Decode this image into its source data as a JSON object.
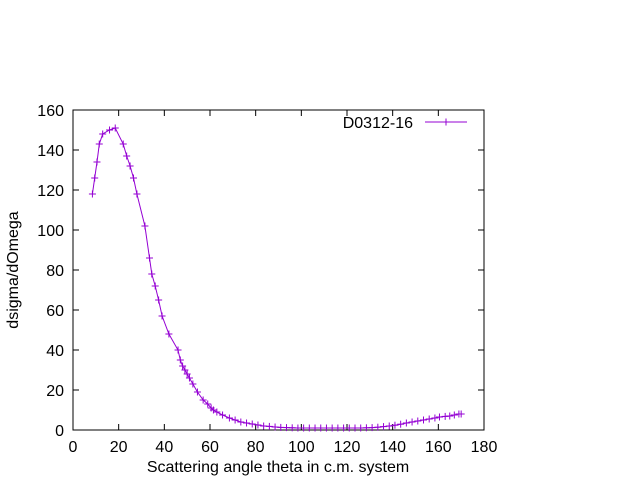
{
  "chart_data": {
    "type": "line",
    "title": "",
    "xlabel": "Scattering angle theta in c.m. system",
    "ylabel": "dsigma/dOmega",
    "xlim": [
      0,
      180
    ],
    "ylim": [
      0,
      160
    ],
    "xticks": [
      0,
      20,
      40,
      60,
      80,
      100,
      120,
      140,
      160,
      180
    ],
    "yticks": [
      0,
      20,
      40,
      60,
      80,
      100,
      120,
      140,
      160
    ],
    "grid": false,
    "legend_position": "top-right",
    "colors": {
      "series": "#9400d3",
      "axis": "#000000"
    },
    "marker": "plus",
    "series": [
      {
        "name": "D0312-16",
        "x": [
          8.5,
          9.5,
          10.5,
          11.5,
          13,
          16,
          18.5,
          22,
          23.5,
          25,
          26.5,
          28,
          31.5,
          33.5,
          34.5,
          36,
          37.5,
          39,
          42,
          46,
          47,
          48,
          49,
          50,
          51,
          52.5,
          54.5,
          57,
          59,
          60.5,
          61.5,
          63,
          65.5,
          68.5,
          71,
          73.5,
          76,
          78.5,
          81,
          83.5,
          86,
          88.5,
          91,
          93.5,
          96,
          98.5,
          101,
          103.5,
          106,
          108.5,
          111,
          113.5,
          116,
          118.5,
          121,
          123.5,
          126,
          128.5,
          131,
          133.5,
          136,
          138.5,
          141,
          143.5,
          146,
          148.5,
          151,
          153.5,
          156,
          158.5,
          160.5,
          163,
          165,
          167,
          169,
          170
        ],
        "y": [
          118,
          126,
          134,
          143,
          148,
          150,
          151,
          143,
          137,
          132,
          126,
          118,
          102,
          86,
          78,
          72,
          65,
          57,
          48,
          40,
          35,
          32,
          30,
          28,
          26,
          23,
          19,
          15,
          13,
          11,
          10,
          9,
          7.5,
          6,
          5,
          4,
          3.5,
          3,
          2.5,
          2,
          1.8,
          1.5,
          1.3,
          1.2,
          1.1,
          1,
          1,
          1,
          1,
          1,
          1,
          1,
          1,
          1,
          1,
          1,
          1,
          1.1,
          1.2,
          1.4,
          1.7,
          2,
          2.4,
          2.9,
          3.5,
          4,
          4.5,
          5,
          5.5,
          6,
          6.5,
          6.8,
          7,
          7.5,
          8,
          8
        ]
      }
    ]
  }
}
